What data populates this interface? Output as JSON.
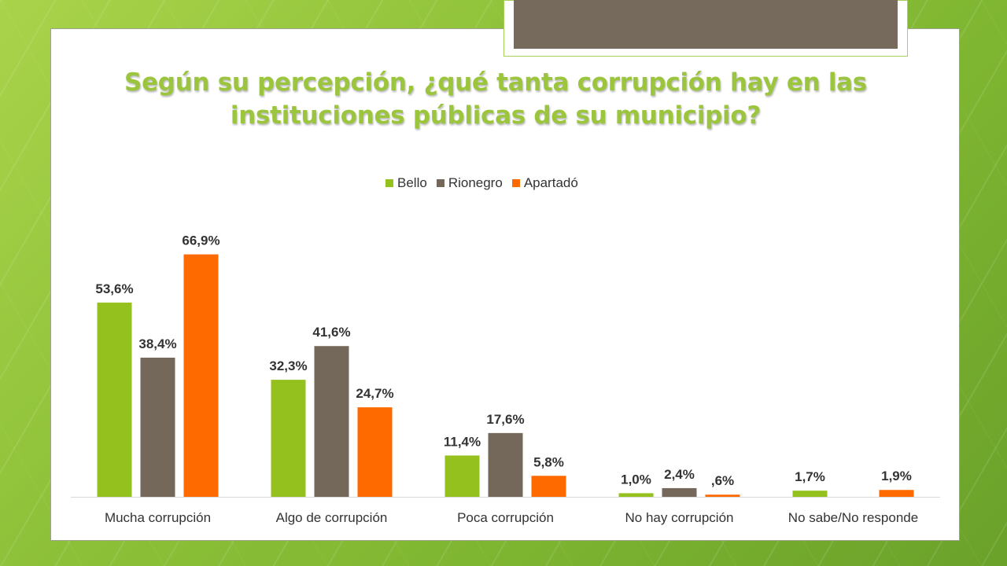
{
  "slide": {
    "title": "Según su percepción, ¿qué tanta corrupción hay en las instituciones públicas de su municipio?"
  },
  "chart_data": {
    "type": "bar",
    "title": "Según su percepción, ¿qué tanta corrupción hay en las instituciones públicas de su municipio?",
    "categories": [
      "Mucha corrupción",
      "Algo de corrupción",
      "Poca corrupción",
      "No hay corrupción",
      "No sabe/No responde"
    ],
    "series": [
      {
        "name": "Bello",
        "color": "#95c11f",
        "values": [
          53.6,
          32.3,
          11.4,
          1.0,
          1.7
        ],
        "labels": [
          "53,6%",
          "32,3%",
          "11,4%",
          "1,0%",
          "1,7%"
        ]
      },
      {
        "name": "Rionegro",
        "color": "#736859",
        "values": [
          38.4,
          41.6,
          17.6,
          2.4,
          null
        ],
        "labels": [
          "38,4%",
          "41,6%",
          "17,6%",
          "2,4%",
          ""
        ]
      },
      {
        "name": "Apartadó",
        "color": "#ff6a00",
        "values": [
          66.9,
          24.7,
          5.8,
          0.6,
          1.9
        ],
        "labels": [
          "66,9%",
          "24,7%",
          "5,8%",
          ",6%",
          "1,9%"
        ]
      }
    ],
    "legend_position": "top",
    "grid": false,
    "ylim": [
      0,
      70
    ]
  }
}
